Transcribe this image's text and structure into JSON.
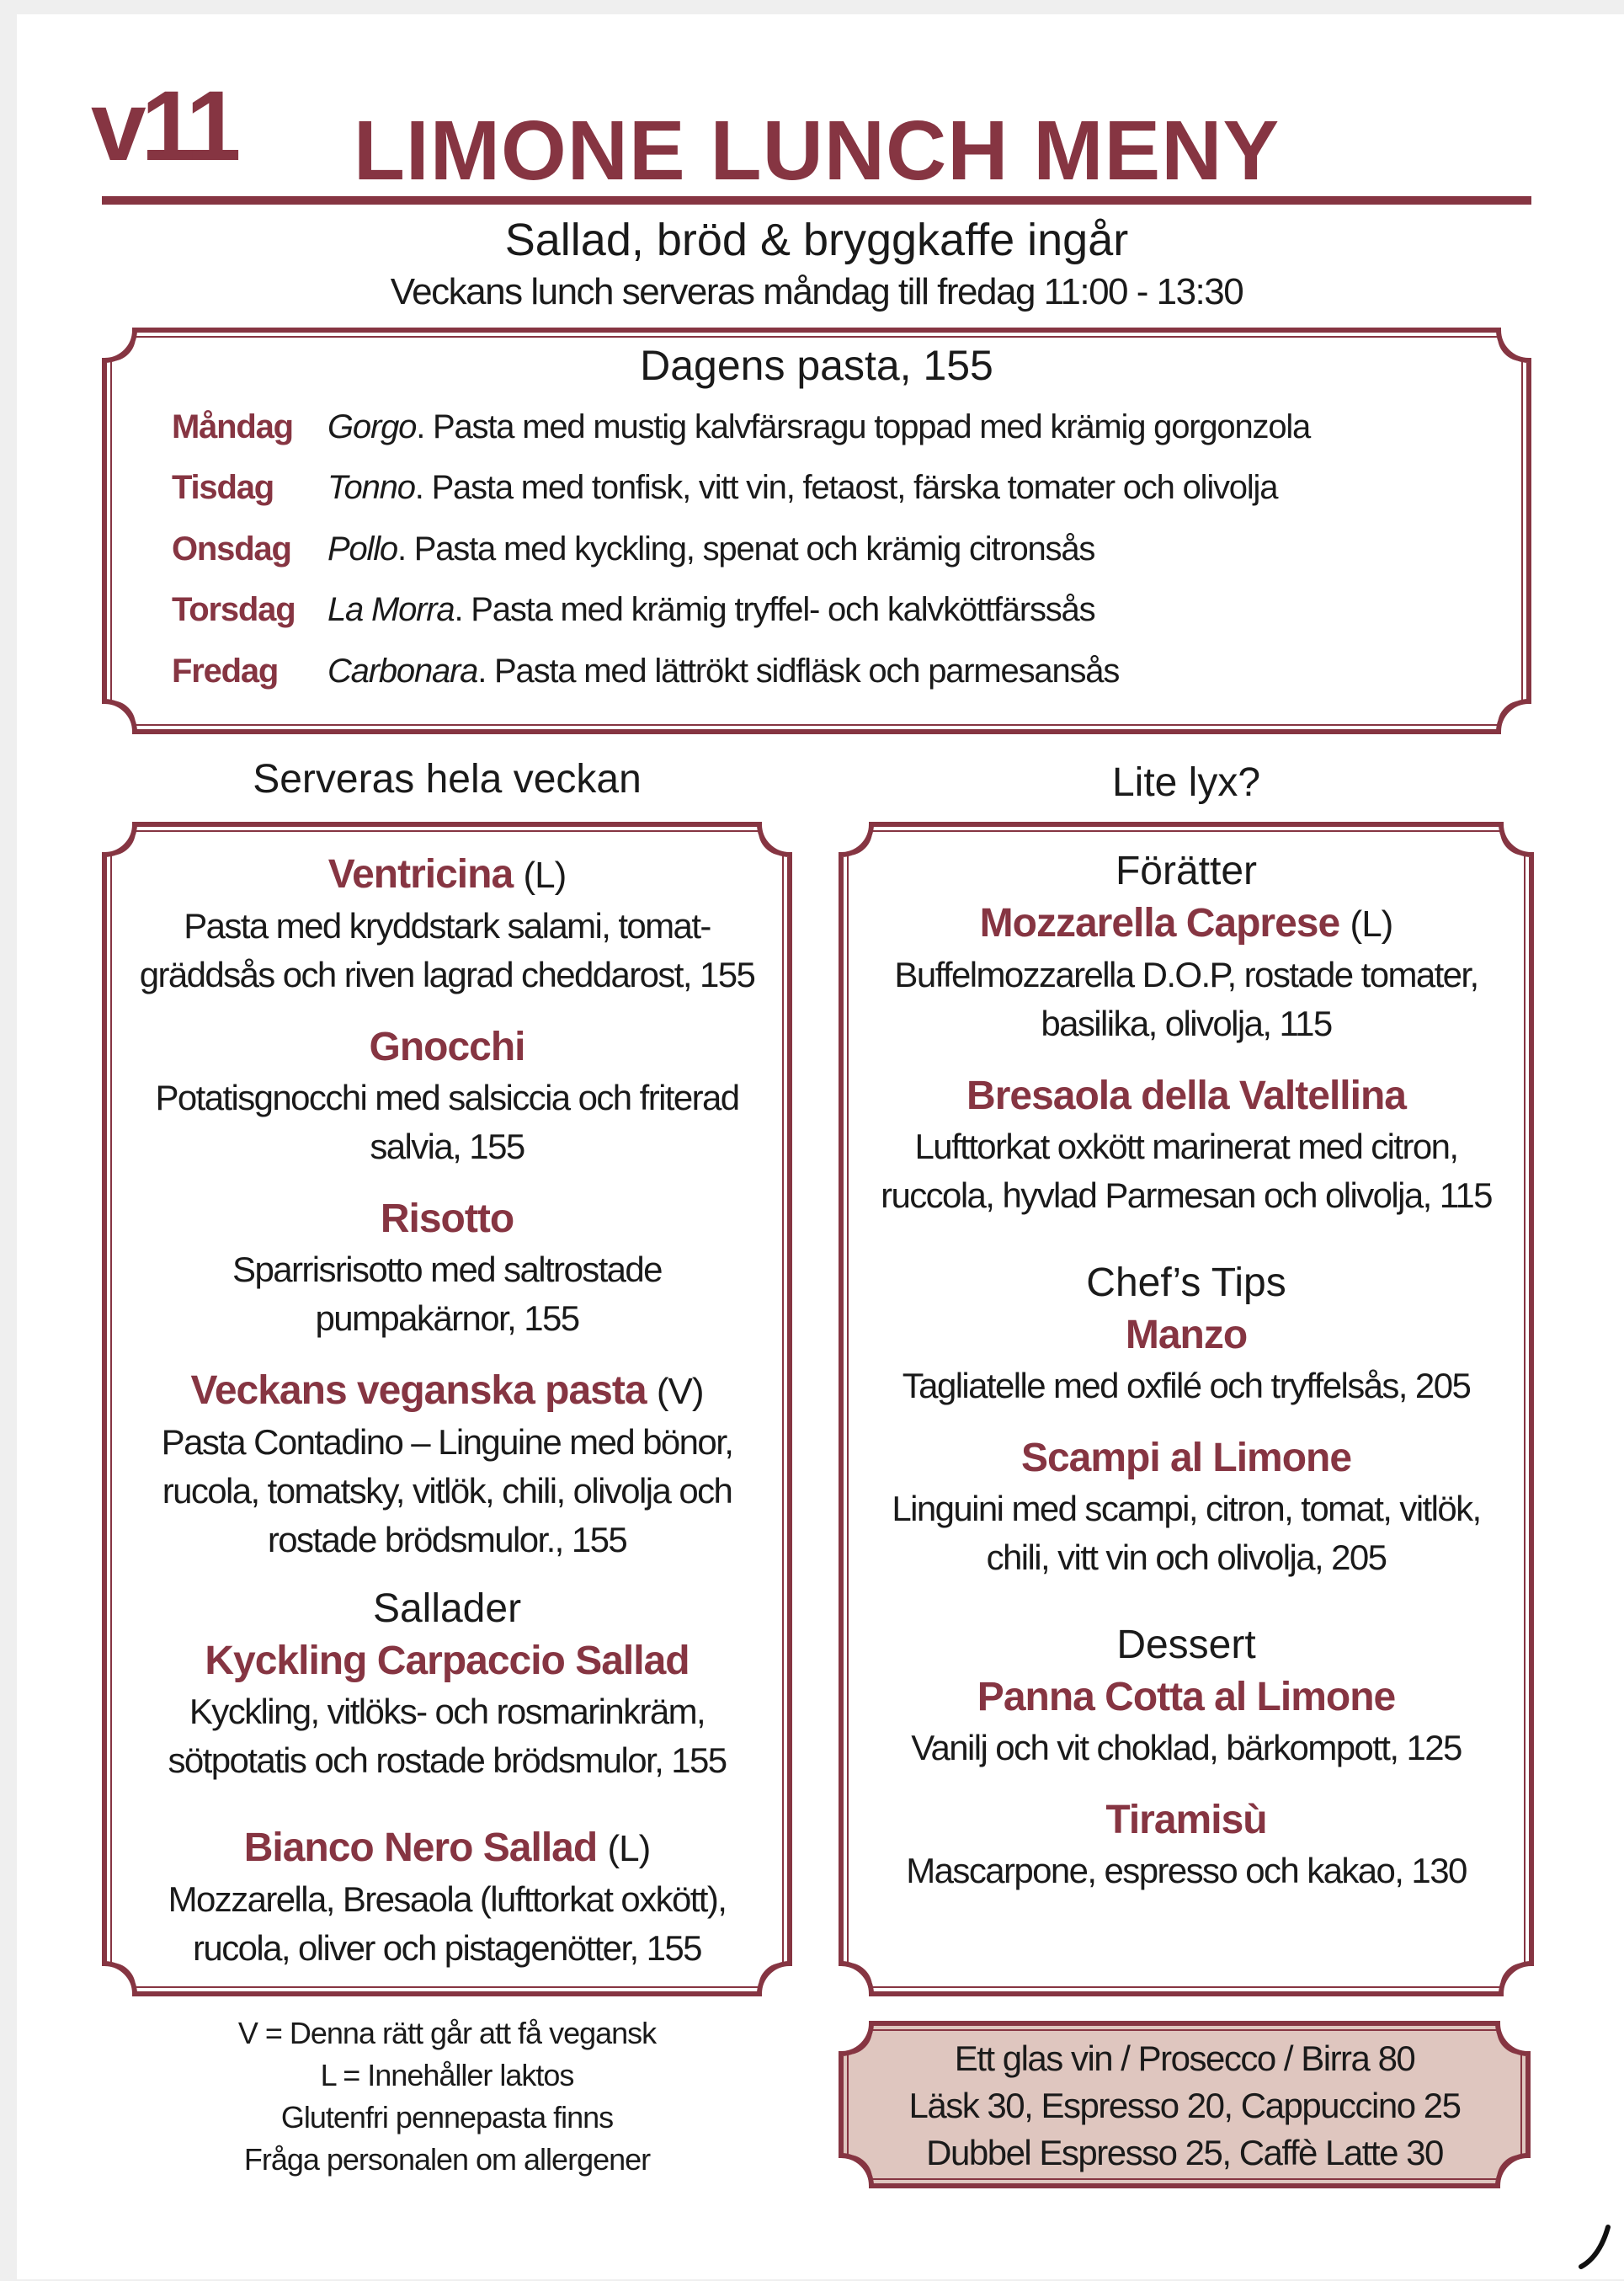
{
  "header": {
    "version": "v11",
    "title": "LIMONE LUNCH MENY",
    "subtitle": "Sallad, bröd & bryggkaffe ingår",
    "hours": "Veckans lunch serveras måndag till fredag 11:00 - 13:30"
  },
  "dagens": {
    "title": "Dagens pasta, 155",
    "days": [
      {
        "day": "Måndag",
        "dish": "Gorgo",
        "desc": ". Pasta med mustig kalvfärsragu toppad med krämig gorgonzola"
      },
      {
        "day": "Tisdag",
        "dish": "Tonno",
        "desc": ". Pasta med tonfisk, vitt vin, fetaost, färska tomater och olivolja"
      },
      {
        "day": "Onsdag",
        "dish": "Pollo",
        "desc": ". Pasta med kyckling, spenat och krämig citronsås"
      },
      {
        "day": "Torsdag",
        "dish": "La Morra",
        "desc": ". Pasta med krämig tryffel- och kalvköttfärssås"
      },
      {
        "day": "Fredag",
        "dish": "Carbonara",
        "desc": ". Pasta med lättrökt sidfläsk och parmesansås"
      }
    ]
  },
  "left": {
    "heading": "Serveras hela veckan",
    "items": [
      {
        "name": "Ventricina",
        "tag": "(L)",
        "lines": [
          "Pasta med kryddstark salami, tomat-",
          "gräddsås och riven lagrad cheddarost, 155"
        ]
      },
      {
        "name": "Gnocchi",
        "tag": "",
        "lines": [
          "Potatisgnocchi med salsiccia och friterad",
          "salvia, 155"
        ]
      },
      {
        "name": "Risotto",
        "tag": "",
        "lines": [
          "Sparrisrisotto med saltrostade",
          "pumpakärnor, 155"
        ]
      },
      {
        "name": "Veckans veganska pasta",
        "tag": "(V)",
        "lines": [
          "Pasta Contadino – Linguine med bönor,",
          "rucola, tomatsky, vitlök, chili, olivolja och",
          "rostade brödsmulor., 155"
        ]
      }
    ],
    "salads_heading": "Sallader",
    "salads": [
      {
        "name": "Kyckling Carpaccio Sallad",
        "tag": "",
        "lines": [
          "Kyckling, vitlöks- och rosmarinkräm,",
          "sötpotatis och rostade brödsmulor, 155"
        ]
      },
      {
        "name": "Bianco Nero Sallad",
        "tag": "(L)",
        "lines": [
          "Mozzarella, Bresaola (lufttorkat oxkött),",
          "rucola, oliver och pistagenötter, 155"
        ]
      }
    ]
  },
  "right": {
    "heading": "Lite lyx?",
    "starters_heading": "Förätter",
    "starters": [
      {
        "name": "Mozzarella Caprese",
        "tag": "(L)",
        "lines": [
          "Buffelmozzarella D.O.P, rostade tomater,",
          "basilika, olivolja, 115"
        ]
      },
      {
        "name": "Bresaola della Valtellina",
        "tag": "",
        "lines": [
          "Lufttorkat oxkött marinerat med citron,",
          "ruccola, hyvlad Parmesan och olivolja, 115"
        ]
      }
    ],
    "chef_heading": "Chef’s Tips",
    "chef": [
      {
        "name": "Manzo",
        "tag": "",
        "lines": [
          "Tagliatelle med oxfilé och tryffelsås, 205"
        ]
      },
      {
        "name": "Scampi al Limone",
        "tag": "",
        "lines": [
          "Linguini med scampi, citron, tomat, vitlök,",
          "chili, vitt vin och olivolja, 205"
        ]
      }
    ],
    "dessert_heading": "Dessert",
    "desserts": [
      {
        "name": "Panna Cotta al Limone",
        "tag": "",
        "lines": [
          "Vanilj och vit choklad, bärkompott, 125"
        ]
      },
      {
        "name": "Tiramisù",
        "tag": "",
        "lines": [
          "Mascarpone, espresso och kakao, 130"
        ]
      }
    ]
  },
  "notes": [
    "V = Denna rätt går att få vegansk",
    "L = Innehåller laktos",
    "Glutenfri pennepasta finns",
    "Fråga personalen om allergener"
  ],
  "drinks": [
    "Ett glas vin / Prosecco / Birra 80",
    "Läsk 30,  Espresso 20,  Cappuccino 25",
    "Dubbel Espresso 25,  Caffè Latte 30"
  ],
  "colors": {
    "accent": "#863542",
    "drinks_fill": "#dfc6bf",
    "background": "#ffffff"
  }
}
